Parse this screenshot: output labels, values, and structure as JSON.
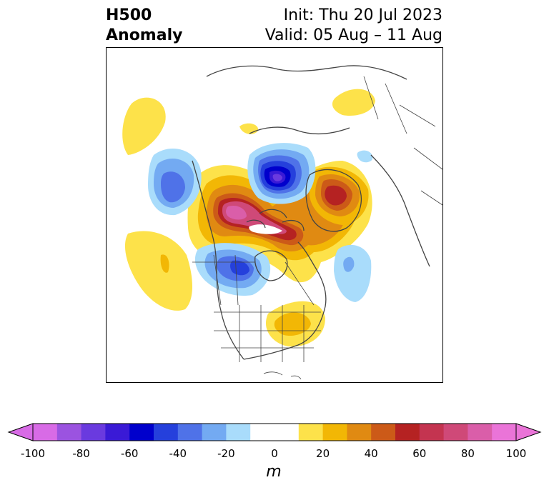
{
  "title": {
    "left_line1": "H500",
    "left_line2": "Anomaly",
    "right_line1": "Init: Thu 20 Jul 2023",
    "right_line2": "Valid: 05 Aug – 11 Aug"
  },
  "colorbar": {
    "units": "m",
    "ticks": [
      "-100",
      "-80",
      "-60",
      "-40",
      "-20",
      "0",
      "20",
      "40",
      "60",
      "80",
      "100"
    ],
    "bin_colors": [
      "#d86be6",
      "#9b53e0",
      "#6a3adf",
      "#3a1ad6",
      "#0000cc",
      "#2540dc",
      "#4f72e8",
      "#73aaf2",
      "#a9dcfb",
      "#ffffff",
      "#ffffff",
      "#fde24a",
      "#f2b705",
      "#e08a12",
      "#cc5a18",
      "#b52222",
      "#c43450",
      "#cf4978",
      "#da5ea9",
      "#ea74d8"
    ],
    "extend_min_color": "#d86be6",
    "extend_max_color": "#ea74d8"
  },
  "colors": {
    "land_lines": "#444444"
  }
}
